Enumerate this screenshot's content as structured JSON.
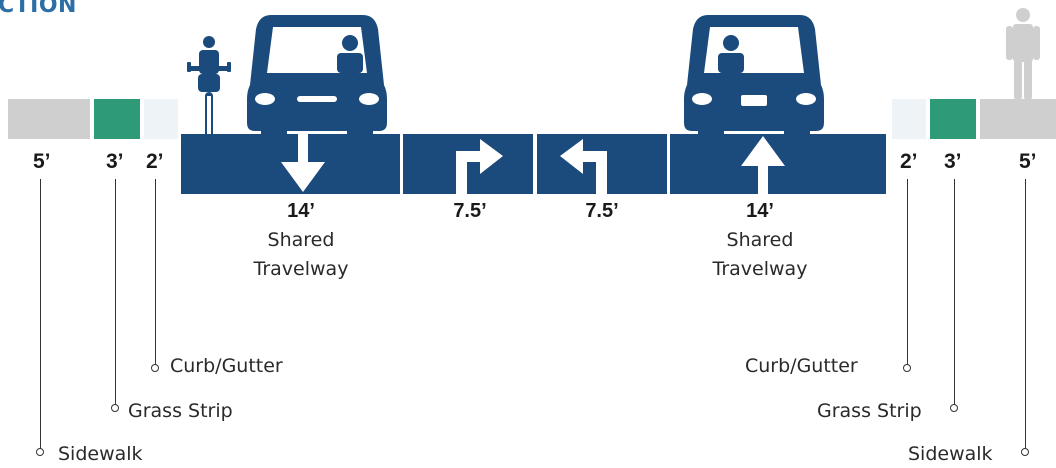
{
  "heading": "CTION",
  "colors": {
    "roadway": "#1b4a7c",
    "grass": "#2e9a77",
    "sidewalk": "#cfcfcf",
    "curb": "#eef3f8",
    "pedestrian": "#cfcfcf"
  },
  "left": {
    "sidewalk_width": "5’",
    "grass_width": "3’",
    "curb_width": "2’",
    "curb_label": "Curb/Gutter",
    "grass_label": "Grass Strip",
    "sidewalk_label": "Sidewalk"
  },
  "right": {
    "sidewalk_width": "5’",
    "grass_width": "3’",
    "curb_width": "2’",
    "curb_label": "Curb/Gutter",
    "grass_label": "Grass Strip",
    "sidewalk_label": "Sidewalk"
  },
  "lanes": [
    {
      "width": "14’",
      "line1": "Shared",
      "line2": "Travelway",
      "arrow": "down-arrow"
    },
    {
      "width": "7.5’",
      "line1": "",
      "line2": "",
      "arrow": "right-turn-arrow"
    },
    {
      "width": "7.5’",
      "line1": "",
      "line2": "",
      "arrow": "left-turn-arrow"
    },
    {
      "width": "14’",
      "line1": "Shared",
      "line2": "Travelway",
      "arrow": "up-arrow"
    }
  ]
}
